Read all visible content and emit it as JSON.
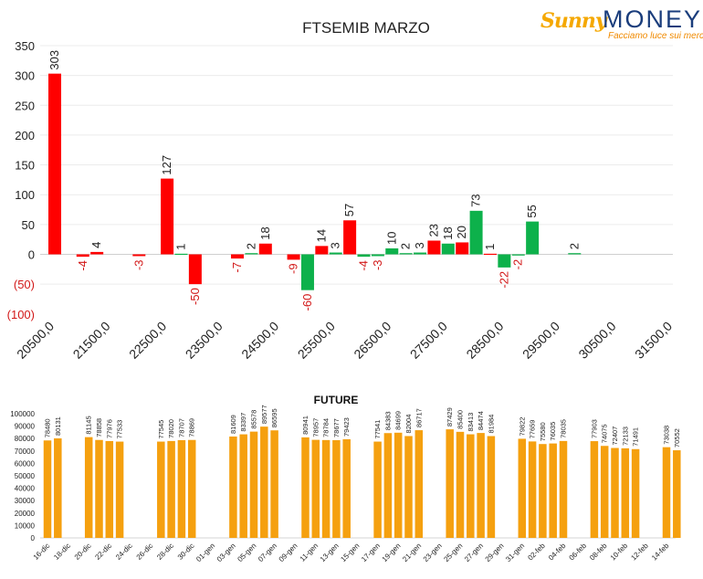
{
  "logo": {
    "brand_first": "Sunny",
    "brand_second": "MONEY",
    "tagline": "Facciamo luce sui mercati"
  },
  "colors": {
    "positive": "#0db14b",
    "negative": "#ff0000",
    "negative_label": "#d21818",
    "future_bar": "#f5a00f",
    "text": "#222222"
  },
  "chart_data": [
    {
      "type": "bar",
      "title": "FTSEMIB MARZO",
      "xlabel": "",
      "ylabel": "",
      "ylim": [
        -100,
        350
      ],
      "yticks": [
        350,
        300,
        250,
        200,
        150,
        100,
        50,
        0,
        -50,
        -100
      ],
      "ytick_labels": [
        "350",
        "300",
        "250",
        "200",
        "150",
        "100",
        "50",
        "0",
        "(50)",
        "(100)"
      ],
      "grid": true,
      "xlim": [
        20500,
        31500
      ],
      "xticks": [
        20500,
        21500,
        22500,
        23500,
        24500,
        25500,
        26500,
        27500,
        28500,
        29500,
        30500,
        31500
      ],
      "xtick_labels": [
        "20500,0",
        "21500,0",
        "22500,0",
        "23500,0",
        "24500,0",
        "25500,0",
        "26500,0",
        "27500,0",
        "28500,0",
        "29500,0",
        "30500,0",
        "31500,0"
      ],
      "bars": [
        {
          "x": 20500,
          "value": 303,
          "color": "red"
        },
        {
          "x": 21000,
          "value": -4,
          "color": "red"
        },
        {
          "x": 21250,
          "value": 4,
          "color": "red"
        },
        {
          "x": 22000,
          "value": -3,
          "color": "red"
        },
        {
          "x": 22500,
          "value": 127,
          "color": "red"
        },
        {
          "x": 22750,
          "value": 1,
          "color": "green"
        },
        {
          "x": 23000,
          "value": -50,
          "color": "red"
        },
        {
          "x": 23750,
          "value": -7,
          "color": "red"
        },
        {
          "x": 24000,
          "value": 2,
          "color": "green"
        },
        {
          "x": 24250,
          "value": 18,
          "color": "red"
        },
        {
          "x": 24750,
          "value": -9,
          "color": "red"
        },
        {
          "x": 25000,
          "value": -60,
          "color": "green"
        },
        {
          "x": 25250,
          "value": 14,
          "color": "red"
        },
        {
          "x": 25500,
          "value": 3,
          "color": "green"
        },
        {
          "x": 25750,
          "value": 57,
          "color": "red"
        },
        {
          "x": 26000,
          "value": -4,
          "color": "green"
        },
        {
          "x": 26250,
          "value": -3,
          "color": "green"
        },
        {
          "x": 26500,
          "value": 10,
          "color": "green"
        },
        {
          "x": 26750,
          "value": 2,
          "color": "green"
        },
        {
          "x": 27000,
          "value": 3,
          "color": "green"
        },
        {
          "x": 27250,
          "value": 23,
          "color": "red"
        },
        {
          "x": 27500,
          "value": 18,
          "color": "green"
        },
        {
          "x": 27750,
          "value": 20,
          "color": "red"
        },
        {
          "x": 28000,
          "value": 73,
          "color": "green"
        },
        {
          "x": 28250,
          "value": 1,
          "color": "red"
        },
        {
          "x": 28500,
          "value": -22,
          "color": "green"
        },
        {
          "x": 28750,
          "value": -2,
          "color": "green"
        },
        {
          "x": 29000,
          "value": 55,
          "color": "green"
        },
        {
          "x": 29750,
          "value": 2,
          "color": "green"
        }
      ]
    },
    {
      "type": "bar",
      "title": "FUTURE",
      "xlabel": "",
      "ylabel": "",
      "ylim": [
        0,
        100000
      ],
      "yticks": [
        0,
        10000,
        20000,
        30000,
        40000,
        50000,
        60000,
        70000,
        80000,
        90000,
        100000
      ],
      "ytick_labels": [
        "0",
        "10000",
        "20000",
        "30000",
        "40000",
        "50000",
        "60000",
        "70000",
        "80000",
        "90000",
        "100000"
      ],
      "grid": false,
      "xtick_labels": [
        "16-dic",
        "18-dic",
        "20-dic",
        "22-dic",
        "24-dic",
        "26-dic",
        "28-dic",
        "30-dic",
        "01-gen",
        "03-gen",
        "05-gen",
        "07-gen",
        "09-gen",
        "11-gen",
        "13-gen",
        "15-gen",
        "17-gen",
        "19-gen",
        "21-gen",
        "23-gen",
        "25-gen",
        "27-gen",
        "29-gen",
        "31-gen",
        "02-feb",
        "04-feb",
        "06-feb",
        "08-feb",
        "10-feb",
        "12-feb",
        "14-feb"
      ],
      "bars": [
        {
          "day": 0,
          "value": 78480
        },
        {
          "day": 1,
          "value": 80131
        },
        {
          "day": 4,
          "value": 81145
        },
        {
          "day": 5,
          "value": 78858
        },
        {
          "day": 6,
          "value": 77976
        },
        {
          "day": 7,
          "value": 77533
        },
        {
          "day": 11,
          "value": 77545
        },
        {
          "day": 12,
          "value": 78020
        },
        {
          "day": 13,
          "value": 78707
        },
        {
          "day": 14,
          "value": 78869
        },
        {
          "day": 18,
          "value": 81609
        },
        {
          "day": 19,
          "value": 83397
        },
        {
          "day": 20,
          "value": 85578
        },
        {
          "day": 21,
          "value": 89577
        },
        {
          "day": 22,
          "value": 86595
        },
        {
          "day": 25,
          "value": 80941
        },
        {
          "day": 26,
          "value": 78957
        },
        {
          "day": 27,
          "value": 78784
        },
        {
          "day": 28,
          "value": 78677
        },
        {
          "day": 29,
          "value": 79423
        },
        {
          "day": 32,
          "value": 77541
        },
        {
          "day": 33,
          "value": 84383
        },
        {
          "day": 34,
          "value": 84699
        },
        {
          "day": 35,
          "value": 82004
        },
        {
          "day": 36,
          "value": 86717
        },
        {
          "day": 39,
          "value": 87429
        },
        {
          "day": 40,
          "value": 85400
        },
        {
          "day": 41,
          "value": 83413
        },
        {
          "day": 42,
          "value": 84474
        },
        {
          "day": 43,
          "value": 81984
        },
        {
          "day": 46,
          "value": 79822
        },
        {
          "day": 47,
          "value": 77659
        },
        {
          "day": 48,
          "value": 75580
        },
        {
          "day": 49,
          "value": 76035
        },
        {
          "day": 50,
          "value": 78035
        },
        {
          "day": 53,
          "value": 77903
        },
        {
          "day": 54,
          "value": 74075
        },
        {
          "day": 55,
          "value": 72407
        },
        {
          "day": 56,
          "value": 72133
        },
        {
          "day": 57,
          "value": 71491
        },
        {
          "day": 60,
          "value": 73038
        },
        {
          "day": 61,
          "value": 70552
        }
      ]
    }
  ]
}
